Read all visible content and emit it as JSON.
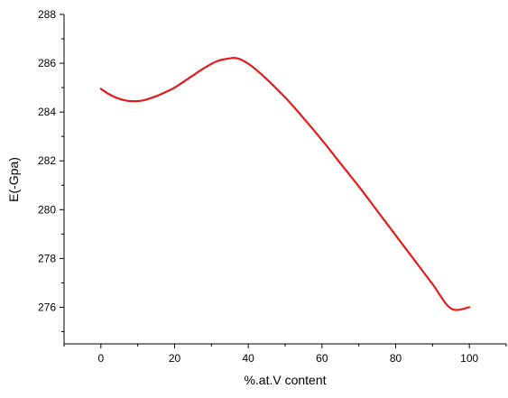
{
  "chart_data": {
    "type": "line",
    "title": "",
    "xlabel": "%.at.V content",
    "ylabel": "E(-Gpa)",
    "xlim": [
      -10,
      110
    ],
    "ylim": [
      274.5,
      288
    ],
    "x_ticks": [
      0,
      20,
      40,
      60,
      80,
      100
    ],
    "y_ticks": [
      276,
      278,
      280,
      282,
      284,
      286,
      288
    ],
    "x_tick_labels": [
      "0",
      "20",
      "40",
      "60",
      "80",
      "100"
    ],
    "y_tick_labels": [
      "276",
      "278",
      "280",
      "282",
      "284",
      "286",
      "288"
    ],
    "grid": false,
    "legend": "none",
    "series": [
      {
        "color": "#e41a1c",
        "x": [
          0,
          2,
          4,
          6,
          8,
          10,
          12,
          15,
          18,
          20,
          24,
          28,
          31,
          33,
          35,
          36,
          37,
          38,
          40,
          42,
          45,
          50,
          55,
          60,
          65,
          70,
          75,
          80,
          85,
          90,
          95,
          100
        ],
        "y": [
          284.95,
          284.75,
          284.6,
          284.5,
          284.45,
          284.45,
          284.5,
          284.65,
          284.85,
          285.0,
          285.4,
          285.8,
          286.05,
          286.15,
          286.2,
          286.22,
          286.2,
          286.15,
          285.98,
          285.75,
          285.35,
          284.6,
          283.75,
          282.85,
          281.9,
          280.95,
          279.95,
          278.95,
          277.95,
          276.95,
          275.95,
          276.0
        ]
      }
    ]
  }
}
